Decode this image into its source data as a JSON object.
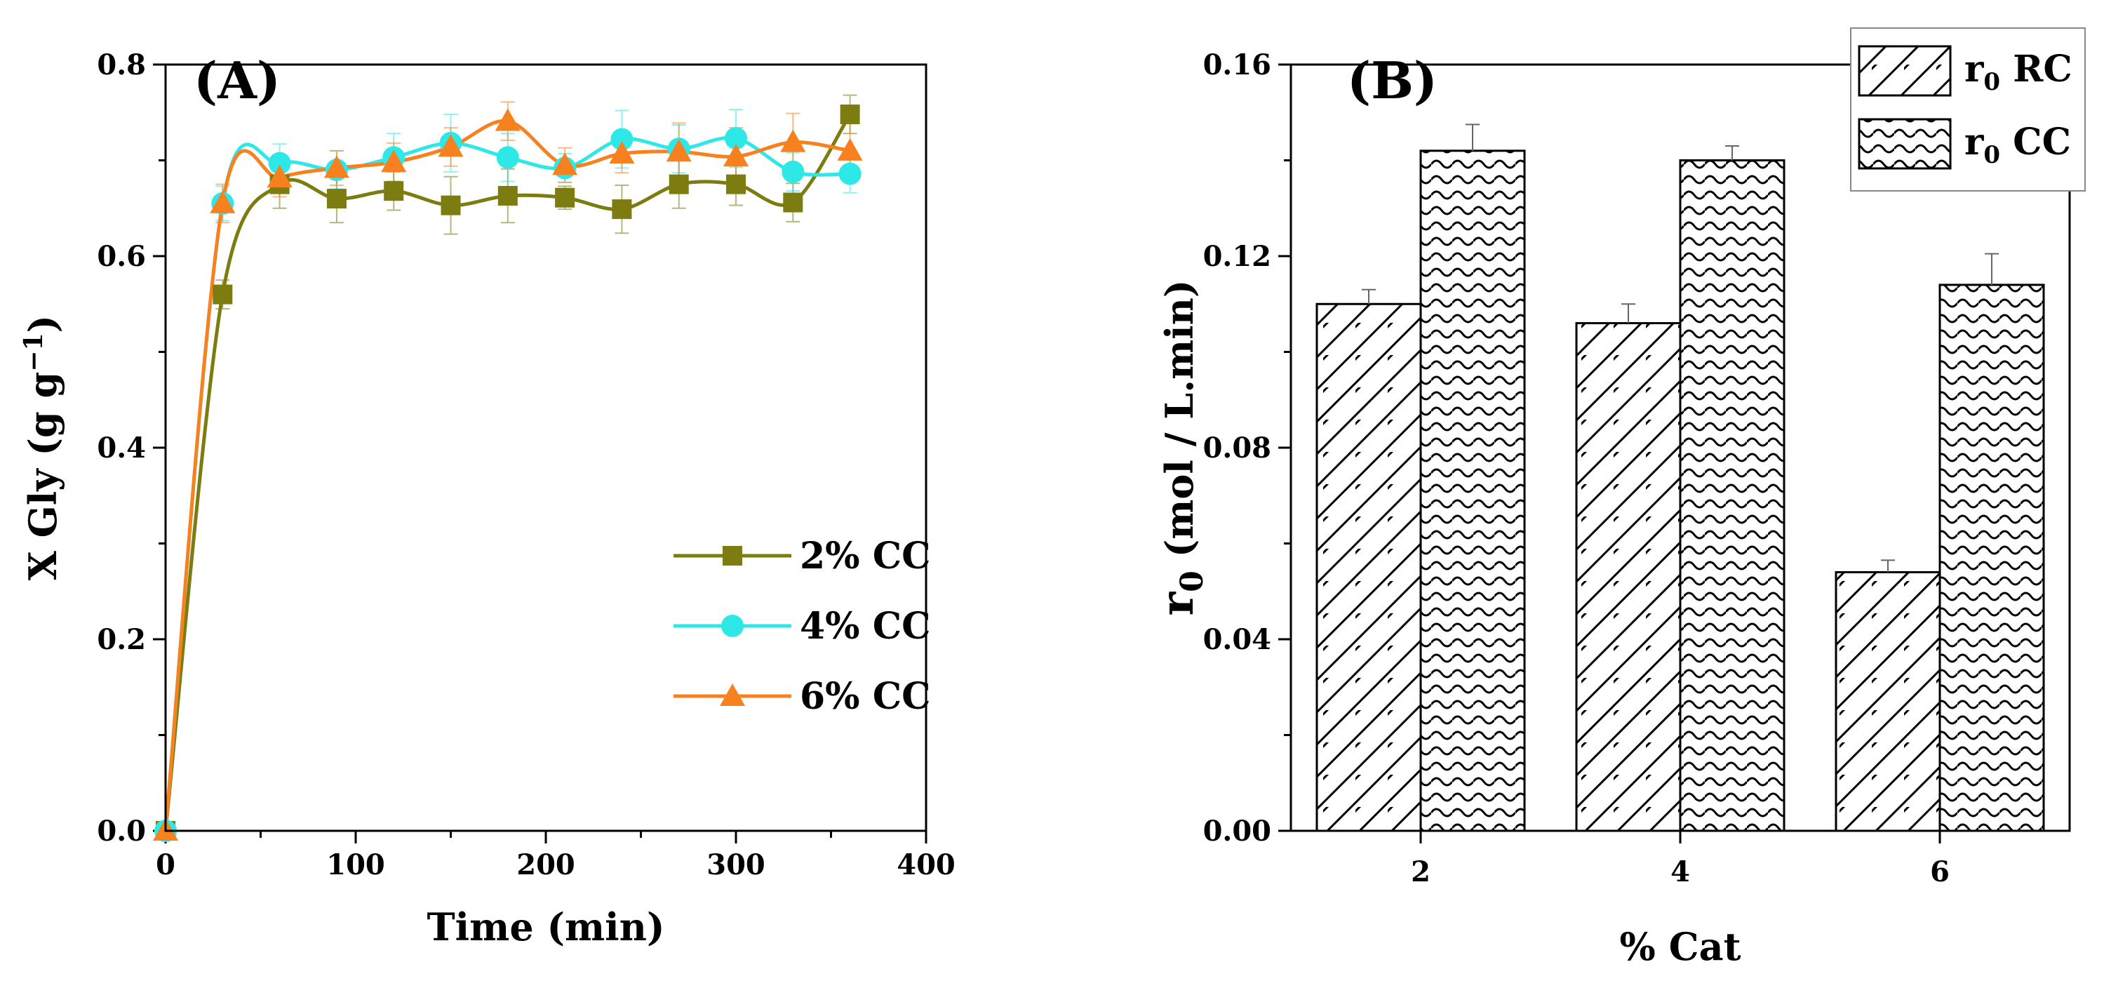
{
  "chart_data": [
    {
      "panel_label": "(A)",
      "type": "line",
      "xlabel": "Time (min)",
      "ylabel": "X Gly (g g",
      "ylabel_sup": "−1",
      "ylabel_end": ")",
      "xlim": [
        0,
        400
      ],
      "ylim": [
        0,
        0.8
      ],
      "x_ticks": [
        "0",
        "100",
        "200",
        "300",
        "400"
      ],
      "y_ticks": [
        "0.0",
        "0.2",
        "0.4",
        "0.6",
        "0.8"
      ],
      "x": [
        0,
        30,
        60,
        90,
        120,
        150,
        180,
        210,
        240,
        270,
        300,
        330,
        360
      ],
      "series": [
        {
          "name": "2%  CC",
          "marker": "square",
          "color": "#7c7c10",
          "values": [
            0.0,
            0.56,
            0.675,
            0.66,
            0.668,
            0.653,
            0.663,
            0.661,
            0.649,
            0.675,
            0.675,
            0.656,
            0.748
          ],
          "errors": [
            0.0,
            0.015,
            0.025,
            0.025,
            0.02,
            0.03,
            0.028,
            0.012,
            0.025,
            0.025,
            0.022,
            0.02,
            0.02
          ]
        },
        {
          "name": "4% CC",
          "marker": "circle",
          "color": "#2ee8e8",
          "values": [
            0.0,
            0.655,
            0.697,
            0.69,
            0.703,
            0.718,
            0.703,
            0.692,
            0.722,
            0.712,
            0.723,
            0.688,
            0.686
          ],
          "errors": [
            0.0,
            0.018,
            0.02,
            0.02,
            0.025,
            0.03,
            0.025,
            0.015,
            0.03,
            0.025,
            0.03,
            0.02,
            0.02
          ]
        },
        {
          "name": "6% CC",
          "marker": "triangle",
          "color": "#f7811e",
          "values": [
            0.0,
            0.655,
            0.682,
            0.692,
            0.698,
            0.714,
            0.741,
            0.695,
            0.707,
            0.709,
            0.704,
            0.719,
            0.71
          ],
          "errors": [
            0.0,
            0.02,
            0.02,
            0.018,
            0.02,
            0.02,
            0.02,
            0.018,
            0.02,
            0.03,
            0.03,
            0.03,
            0.03
          ]
        }
      ]
    },
    {
      "panel_label": "(B)",
      "type": "bar",
      "xlabel": "% Cat",
      "ylabel_main": "r",
      "ylabel_sub": "0",
      "ylabel_rest": " (mol / L.min)",
      "categories": [
        "2",
        "4",
        "6"
      ],
      "ylim": [
        0,
        0.16
      ],
      "y_ticks": [
        "0.00",
        "0.04",
        "0.08",
        "0.12",
        "0.16"
      ],
      "series": [
        {
          "name_main": "r",
          "name_sub": "0",
          "name_rest": " RC",
          "pattern": "diagonal",
          "values": [
            0.11,
            0.106,
            0.054
          ],
          "errors": [
            0.003,
            0.004,
            0.0025
          ]
        },
        {
          "name_main": "r",
          "name_sub": "0",
          "name_rest": " CC",
          "pattern": "wave",
          "values": [
            0.142,
            0.14,
            0.114
          ],
          "errors": [
            0.0055,
            0.003,
            0.0065
          ]
        }
      ]
    }
  ]
}
